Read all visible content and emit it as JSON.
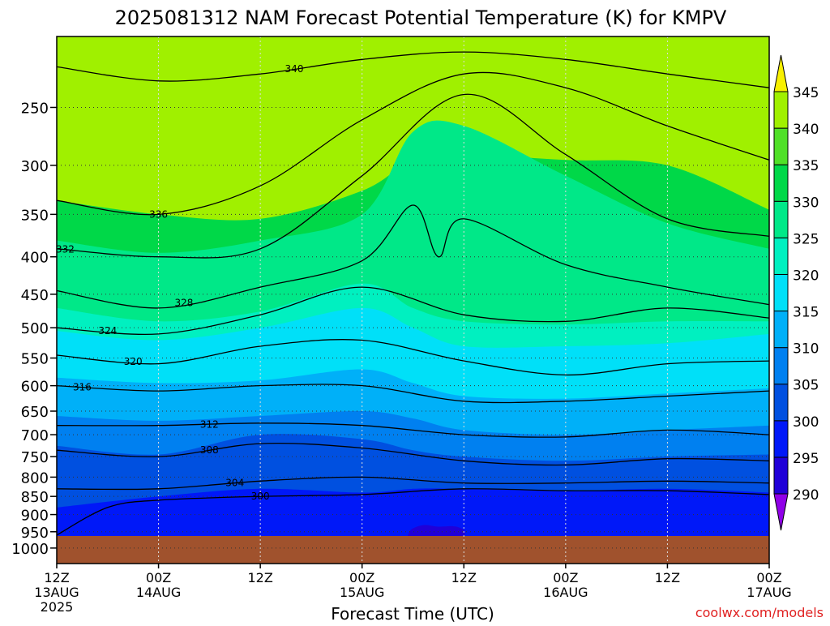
{
  "chart_data": {
    "type": "heatmap",
    "title": "2025081312 NAM Forecast Potential Temperature (K) for KMPV",
    "xlabel": "Forecast Time (UTC)",
    "ylabel": "",
    "credit": "coolwx.com/models",
    "x_range": [
      "2025-08-13T12:00Z",
      "2025-08-17T00:00Z"
    ],
    "x_ticks": [
      {
        "time": "2025-08-13T12:00Z",
        "lines": [
          "12Z",
          "13AUG",
          "2025"
        ]
      },
      {
        "time": "2025-08-14T00:00Z",
        "lines": [
          "00Z",
          "14AUG"
        ]
      },
      {
        "time": "2025-08-14T12:00Z",
        "lines": [
          "12Z"
        ]
      },
      {
        "time": "2025-08-15T00:00Z",
        "lines": [
          "00Z",
          "15AUG"
        ]
      },
      {
        "time": "2025-08-15T12:00Z",
        "lines": [
          "12Z"
        ]
      },
      {
        "time": "2025-08-16T00:00Z",
        "lines": [
          "00Z",
          "16AUG"
        ]
      },
      {
        "time": "2025-08-16T12:00Z",
        "lines": [
          "12Z"
        ]
      },
      {
        "time": "2025-08-17T00:00Z",
        "lines": [
          "00Z",
          "17AUG"
        ]
      }
    ],
    "y_axis": {
      "quantity": "pressure (hPa)",
      "scale": "log",
      "range": [
        1050,
        200
      ],
      "inverted": true
    },
    "y_ticks": [
      250,
      300,
      350,
      400,
      450,
      500,
      550,
      600,
      650,
      700,
      750,
      800,
      850,
      900,
      950,
      1000
    ],
    "grid": true,
    "colorbar": {
      "placement": "right",
      "levels": [
        290,
        295,
        300,
        305,
        310,
        315,
        320,
        325,
        330,
        335,
        340,
        345
      ],
      "labels": [
        "290",
        "295",
        "300",
        "305",
        "310",
        "315",
        "320",
        "325",
        "330",
        "335",
        "340",
        "345"
      ],
      "colors": [
        "#9000e8",
        "#2000d8",
        "#0018f8",
        "#0050e0",
        "#0080f0",
        "#00b0f8",
        "#00e0f8",
        "#00f0c0",
        "#00e888",
        "#00d848",
        "#50e028",
        "#a0f000",
        "#f8f000"
      ]
    },
    "terrain_color": "#a0522d",
    "fill_bands": [
      {
        "color": "#00d848",
        "points": [
          [
            "2025-08-13T12:00Z",
            335
          ],
          [
            "2025-08-14T00:00Z",
            350
          ],
          [
            "2025-08-14T12:00Z",
            355
          ],
          [
            "2025-08-15T00:00Z",
            325
          ],
          [
            "2025-08-15T06:00Z",
            295
          ],
          [
            "2025-08-15T12:00Z",
            290
          ],
          [
            "2025-08-16T00:00Z",
            295
          ],
          [
            "2025-08-16T12:00Z",
            300
          ],
          [
            "2025-08-17T00:00Z",
            345
          ]
        ]
      },
      {
        "color": "#00e888",
        "points": [
          [
            "2025-08-13T12:00Z",
            380
          ],
          [
            "2025-08-14T00:00Z",
            395
          ],
          [
            "2025-08-14T12:00Z",
            380
          ],
          [
            "2025-08-15T00:00Z",
            350
          ],
          [
            "2025-08-15T06:00Z",
            270
          ],
          [
            "2025-08-15T12:00Z",
            265
          ],
          [
            "2025-08-16T00:00Z",
            310
          ],
          [
            "2025-08-16T12:00Z",
            360
          ],
          [
            "2025-08-17T00:00Z",
            390
          ]
        ]
      },
      {
        "color": "#00f0c0",
        "points": [
          [
            "2025-08-13T12:00Z",
            470
          ],
          [
            "2025-08-14T00:00Z",
            490
          ],
          [
            "2025-08-14T12:00Z",
            475
          ],
          [
            "2025-08-15T00:00Z",
            435
          ],
          [
            "2025-08-15T06:00Z",
            470
          ],
          [
            "2025-08-15T12:00Z",
            490
          ],
          [
            "2025-08-16T00:00Z",
            495
          ],
          [
            "2025-08-16T12:00Z",
            490
          ],
          [
            "2025-08-17T00:00Z",
            490
          ]
        ]
      },
      {
        "color": "#00e0f8",
        "points": [
          [
            "2025-08-13T12:00Z",
            505
          ],
          [
            "2025-08-14T00:00Z",
            520
          ],
          [
            "2025-08-14T12:00Z",
            500
          ],
          [
            "2025-08-15T00:00Z",
            470
          ],
          [
            "2025-08-15T06:00Z",
            500
          ],
          [
            "2025-08-15T12:00Z",
            530
          ],
          [
            "2025-08-16T00:00Z",
            530
          ],
          [
            "2025-08-16T12:00Z",
            525
          ],
          [
            "2025-08-17T00:00Z",
            510
          ]
        ]
      },
      {
        "color": "#00b0f8",
        "points": [
          [
            "2025-08-13T12:00Z",
            585
          ],
          [
            "2025-08-14T00:00Z",
            595
          ],
          [
            "2025-08-14T12:00Z",
            590
          ],
          [
            "2025-08-15T00:00Z",
            570
          ],
          [
            "2025-08-15T06:00Z",
            595
          ],
          [
            "2025-08-15T12:00Z",
            620
          ],
          [
            "2025-08-16T00:00Z",
            625
          ],
          [
            "2025-08-16T12:00Z",
            615
          ],
          [
            "2025-08-17T00:00Z",
            605
          ]
        ]
      },
      {
        "color": "#0080f0",
        "points": [
          [
            "2025-08-13T12:00Z",
            660
          ],
          [
            "2025-08-14T00:00Z",
            670
          ],
          [
            "2025-08-14T12:00Z",
            660
          ],
          [
            "2025-08-15T00:00Z",
            650
          ],
          [
            "2025-08-15T06:00Z",
            665
          ],
          [
            "2025-08-15T12:00Z",
            690
          ],
          [
            "2025-08-16T00:00Z",
            700
          ],
          [
            "2025-08-16T12:00Z",
            690
          ],
          [
            "2025-08-17T00:00Z",
            680
          ]
        ]
      },
      {
        "color": "#0050e0",
        "points": [
          [
            "2025-08-13T12:00Z",
            725
          ],
          [
            "2025-08-14T00:00Z",
            745
          ],
          [
            "2025-08-14T12:00Z",
            700
          ],
          [
            "2025-08-15T00:00Z",
            710
          ],
          [
            "2025-08-15T06:00Z",
            735
          ],
          [
            "2025-08-15T12:00Z",
            750
          ],
          [
            "2025-08-16T00:00Z",
            760
          ],
          [
            "2025-08-16T12:00Z",
            750
          ],
          [
            "2025-08-17T00:00Z",
            745
          ]
        ]
      },
      {
        "color": "#0018f8",
        "points": [
          [
            "2025-08-13T12:00Z",
            880
          ],
          [
            "2025-08-14T00:00Z",
            850
          ],
          [
            "2025-08-14T12:00Z",
            830
          ],
          [
            "2025-08-15T00:00Z",
            840
          ],
          [
            "2025-08-15T06:00Z",
            830
          ],
          [
            "2025-08-15T12:00Z",
            830
          ],
          [
            "2025-08-16T00:00Z",
            835
          ],
          [
            "2025-08-16T12:00Z",
            830
          ],
          [
            "2025-08-17T00:00Z",
            840
          ]
        ]
      },
      {
        "color": "#2000d8",
        "points": [
          [
            "2025-08-13T12:00Z",
            1050
          ],
          [
            "2025-08-15T00:00Z",
            1050
          ],
          [
            "2025-08-15T06:00Z",
            940
          ],
          [
            "2025-08-15T09:00Z",
            935
          ],
          [
            "2025-08-15T12:00Z",
            945
          ],
          [
            "2025-08-15T15:00Z",
            1050
          ],
          [
            "2025-08-17T00:00Z",
            1050
          ]
        ]
      }
    ],
    "contours": [
      {
        "label": "340",
        "label_at": "2025-08-14T16:00Z",
        "points": [
          [
            "2025-08-13T12:00Z",
            220
          ],
          [
            "2025-08-14T00:00Z",
            230
          ],
          [
            "2025-08-14T12:00Z",
            225
          ],
          [
            "2025-08-15T00:00Z",
            215
          ],
          [
            "2025-08-15T12:00Z",
            210
          ],
          [
            "2025-08-16T00:00Z",
            215
          ],
          [
            "2025-08-16T12:00Z",
            225
          ],
          [
            "2025-08-17T00:00Z",
            235
          ]
        ]
      },
      {
        "label": "336",
        "label_at": "2025-08-14T00:00Z",
        "points": [
          [
            "2025-08-13T12:00Z",
            335
          ],
          [
            "2025-08-14T00:00Z",
            350
          ],
          [
            "2025-08-14T12:00Z",
            320
          ],
          [
            "2025-08-15T00:00Z",
            260
          ],
          [
            "2025-08-15T12:00Z",
            225
          ],
          [
            "2025-08-16T00:00Z",
            235
          ],
          [
            "2025-08-16T12:00Z",
            265
          ],
          [
            "2025-08-17T00:00Z",
            295
          ]
        ]
      },
      {
        "label": "332",
        "label_at": "2025-08-13T13:00Z",
        "points": [
          [
            "2025-08-13T12:00Z",
            390
          ],
          [
            "2025-08-14T00:00Z",
            400
          ],
          [
            "2025-08-14T12:00Z",
            390
          ],
          [
            "2025-08-15T00:00Z",
            310
          ],
          [
            "2025-08-15T12:00Z",
            240
          ],
          [
            "2025-08-16T00:00Z",
            290
          ],
          [
            "2025-08-16T12:00Z",
            355
          ],
          [
            "2025-08-17T00:00Z",
            375
          ]
        ]
      },
      {
        "label": "328",
        "label_at": "2025-08-14T03:00Z",
        "points": [
          [
            "2025-08-13T12:00Z",
            445
          ],
          [
            "2025-08-14T00:00Z",
            470
          ],
          [
            "2025-08-14T12:00Z",
            440
          ],
          [
            "2025-08-15T00:00Z",
            405
          ],
          [
            "2025-08-15T06:00Z",
            340
          ],
          [
            "2025-08-15T09:00Z",
            400
          ],
          [
            "2025-08-15T12:00Z",
            355
          ],
          [
            "2025-08-16T00:00Z",
            410
          ],
          [
            "2025-08-16T12:00Z",
            440
          ],
          [
            "2025-08-17T00:00Z",
            465
          ]
        ]
      },
      {
        "label": "324",
        "label_at": "2025-08-13T18:00Z",
        "points": [
          [
            "2025-08-13T12:00Z",
            500
          ],
          [
            "2025-08-14T00:00Z",
            510
          ],
          [
            "2025-08-14T12:00Z",
            480
          ],
          [
            "2025-08-15T00:00Z",
            440
          ],
          [
            "2025-08-15T12:00Z",
            480
          ],
          [
            "2025-08-16T00:00Z",
            490
          ],
          [
            "2025-08-16T12:00Z",
            470
          ],
          [
            "2025-08-17T00:00Z",
            485
          ]
        ]
      },
      {
        "label": "320",
        "label_at": "2025-08-13T21:00Z",
        "points": [
          [
            "2025-08-13T12:00Z",
            545
          ],
          [
            "2025-08-14T00:00Z",
            560
          ],
          [
            "2025-08-14T12:00Z",
            530
          ],
          [
            "2025-08-15T00:00Z",
            520
          ],
          [
            "2025-08-15T12:00Z",
            555
          ],
          [
            "2025-08-16T00:00Z",
            580
          ],
          [
            "2025-08-16T12:00Z",
            560
          ],
          [
            "2025-08-17T00:00Z",
            555
          ]
        ]
      },
      {
        "label": "316",
        "label_at": "2025-08-13T15:00Z",
        "points": [
          [
            "2025-08-13T12:00Z",
            600
          ],
          [
            "2025-08-14T00:00Z",
            610
          ],
          [
            "2025-08-14T12:00Z",
            600
          ],
          [
            "2025-08-15T00:00Z",
            600
          ],
          [
            "2025-08-15T12:00Z",
            630
          ],
          [
            "2025-08-16T00:00Z",
            630
          ],
          [
            "2025-08-16T12:00Z",
            620
          ],
          [
            "2025-08-17T00:00Z",
            610
          ]
        ]
      },
      {
        "label": "312",
        "label_at": "2025-08-14T06:00Z",
        "points": [
          [
            "2025-08-13T12:00Z",
            680
          ],
          [
            "2025-08-14T00:00Z",
            680
          ],
          [
            "2025-08-14T12:00Z",
            675
          ],
          [
            "2025-08-15T00:00Z",
            680
          ],
          [
            "2025-08-15T12:00Z",
            700
          ],
          [
            "2025-08-16T00:00Z",
            705
          ],
          [
            "2025-08-16T12:00Z",
            690
          ],
          [
            "2025-08-17T00:00Z",
            700
          ]
        ]
      },
      {
        "label": "308",
        "label_at": "2025-08-14T06:00Z",
        "points": [
          [
            "2025-08-13T12:00Z",
            735
          ],
          [
            "2025-08-14T00:00Z",
            750
          ],
          [
            "2025-08-14T12:00Z",
            720
          ],
          [
            "2025-08-15T00:00Z",
            730
          ],
          [
            "2025-08-15T12:00Z",
            760
          ],
          [
            "2025-08-16T00:00Z",
            770
          ],
          [
            "2025-08-16T12:00Z",
            755
          ],
          [
            "2025-08-17T00:00Z",
            760
          ]
        ]
      },
      {
        "label": "304",
        "label_at": "2025-08-14T09:00Z",
        "points": [
          [
            "2025-08-13T12:00Z",
            830
          ],
          [
            "2025-08-14T00:00Z",
            830
          ],
          [
            "2025-08-14T12:00Z",
            810
          ],
          [
            "2025-08-15T00:00Z",
            800
          ],
          [
            "2025-08-15T12:00Z",
            815
          ],
          [
            "2025-08-16T00:00Z",
            815
          ],
          [
            "2025-08-16T12:00Z",
            810
          ],
          [
            "2025-08-17T00:00Z",
            815
          ]
        ]
      },
      {
        "label": "300",
        "label_at": "2025-08-14T12:00Z",
        "points": [
          [
            "2025-08-13T12:00Z",
            960
          ],
          [
            "2025-08-13T18:00Z",
            880
          ],
          [
            "2025-08-14T00:00Z",
            860
          ],
          [
            "2025-08-14T12:00Z",
            850
          ],
          [
            "2025-08-15T00:00Z",
            845
          ],
          [
            "2025-08-15T12:00Z",
            830
          ],
          [
            "2025-08-16T00:00Z",
            835
          ],
          [
            "2025-08-16T12:00Z",
            835
          ],
          [
            "2025-08-17T00:00Z",
            845
          ]
        ]
      }
    ]
  }
}
